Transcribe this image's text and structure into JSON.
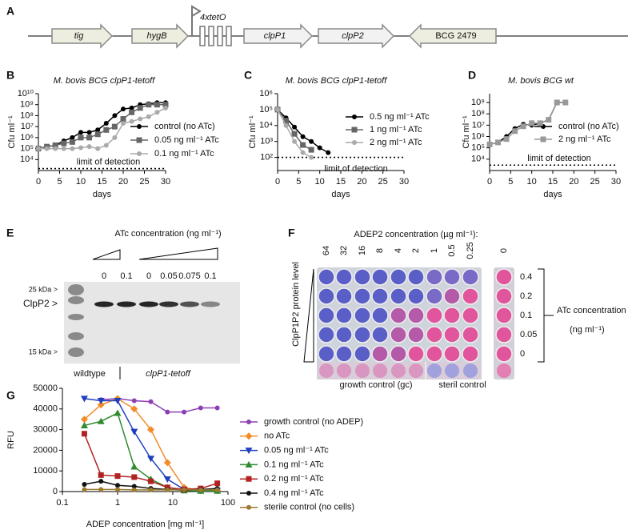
{
  "panel_labels": [
    "A",
    "B",
    "C",
    "D",
    "E",
    "F",
    "G"
  ],
  "diagram": {
    "genes": [
      "tig",
      "hygB",
      "clpP1",
      "clpP2",
      "BCG 2479"
    ],
    "operator": "4xtetO"
  },
  "chart_data": [
    {
      "type": "line",
      "title": "M. bovis BCG clpP1-tetoff",
      "xlabel": "days",
      "ylabel": "Cfu ml⁻¹",
      "ylog": true,
      "x": [
        0,
        2,
        4,
        6,
        8,
        10,
        12,
        14,
        16,
        18,
        20,
        22,
        24,
        26,
        28,
        30
      ],
      "series": [
        {
          "name": "control (no ATc)",
          "color": "#000000",
          "marker": "circle",
          "values": [
            100000,
            150000,
            200000,
            500000,
            1000000,
            3000000,
            3000000,
            5000000,
            20000000,
            100000000,
            400000000,
            500000000,
            1000000000,
            1200000000,
            1500000000,
            1500000000
          ]
        },
        {
          "name": "0.05 ng ml⁻¹ ATc",
          "color": "#666666",
          "marker": "square",
          "values": [
            100000,
            150000,
            200000,
            300000,
            400000,
            1000000,
            1000000,
            2000000,
            5000000,
            10000000,
            50000000,
            200000000,
            500000000,
            1000000000,
            1000000000,
            1000000000
          ]
        },
        {
          "name": "0.1 ng ml⁻¹ ATc",
          "color": "#aaaaaa",
          "marker": "circle",
          "values": [
            100000,
            100000,
            100000,
            100000,
            100000,
            120000,
            150000,
            100000,
            200000,
            1000000,
            20000000,
            30000000,
            50000000,
            80000000,
            200000000,
            500000000
          ]
        }
      ],
      "xlim": [
        0,
        30
      ],
      "xticks": [
        0,
        5,
        10,
        15,
        20,
        25,
        30
      ],
      "ylim": [
        1000,
        10000000000
      ],
      "yticks": [
        {
          "value": 10000,
          "label": "10⁴"
        },
        {
          "value": 100000,
          "label": "10⁵"
        },
        {
          "value": 1000000,
          "label": "10⁶"
        },
        {
          "value": 10000000,
          "label": "10⁷"
        },
        {
          "value": 100000000,
          "label": "10⁸"
        },
        {
          "value": 1000000000,
          "label": "10⁹"
        },
        {
          "value": 10000000000,
          "label": "10¹⁰"
        }
      ],
      "annotation": {
        "text": "limit of detection",
        "value": 1500
      }
    },
    {
      "type": "line",
      "title": "M. bovis BCG clpP1-tetoff",
      "xlabel": "days",
      "ylabel": "Cfu ml⁻¹",
      "ylog": true,
      "x": [
        0,
        2,
        4,
        6,
        8,
        10,
        12
      ],
      "series": [
        {
          "name": "0.5 ng ml⁻¹ ATc",
          "color": "#000000",
          "marker": "circle",
          "values": [
            100000,
            30000,
            8000,
            2000,
            1000,
            400,
            200
          ]
        },
        {
          "name": "1 ng ml⁻¹ ATc",
          "color": "#666666",
          "marker": "square",
          "values": [
            100000,
            20000,
            3000,
            600,
            300,
            null,
            null
          ]
        },
        {
          "name": "2 ng ml⁻¹ ATc",
          "color": "#aaaaaa",
          "marker": "circle",
          "values": [
            100000,
            10000,
            1000,
            200,
            100,
            null,
            null
          ]
        }
      ],
      "xlim": [
        0,
        30
      ],
      "xticks": [
        0,
        5,
        10,
        15,
        20,
        25,
        30
      ],
      "ylim": [
        15,
        1000000
      ],
      "yticks": [
        {
          "value": 100,
          "label": "10²"
        },
        {
          "value": 1000,
          "label": "10³"
        },
        {
          "value": 10000,
          "label": "10⁴"
        },
        {
          "value": 100000,
          "label": "10⁵"
        },
        {
          "value": 1000000,
          "label": "10⁶"
        }
      ],
      "annotation": {
        "text": "limit of detection",
        "value": 100
      }
    },
    {
      "type": "line",
      "title": "M. bovis BCG wt",
      "xlabel": "days",
      "ylabel": "Cfu ml⁻¹",
      "ylog": true,
      "x": [
        0,
        2,
        4,
        6,
        8,
        10,
        12,
        14,
        16,
        18
      ],
      "series": [
        {
          "name": "control (no ATc)",
          "color": "#000000",
          "marker": "circle",
          "values": [
            200000,
            300000,
            1000000,
            5000000,
            12000000,
            10000000,
            15000000,
            30000000,
            1000000000,
            1000000000
          ]
        },
        {
          "name": "2 ng ml⁻¹ ATc",
          "color": "#999999",
          "marker": "square",
          "values": [
            200000,
            300000,
            600000,
            3000000,
            8000000,
            15000000,
            15000000,
            30000000,
            1000000000,
            1000000000
          ]
        }
      ],
      "xlim": [
        0,
        30
      ],
      "xticks": [
        0,
        5,
        10,
        15,
        20,
        25,
        30
      ],
      "ylim": [
        1000,
        6000000000
      ],
      "yticks": [
        {
          "value": 10000,
          "label": "10⁴"
        },
        {
          "value": 100000,
          "label": "10⁵"
        },
        {
          "value": 1000000,
          "label": "10⁶"
        },
        {
          "value": 10000000,
          "label": "10⁷"
        },
        {
          "value": 100000000,
          "label": "10⁸"
        },
        {
          "value": 1000000000,
          "label": "10⁹"
        }
      ],
      "annotation": {
        "text": "limit of detection",
        "value": 3000
      }
    },
    {
      "type": "line",
      "xlabel": "ADEP concentration [mg ml⁻¹]",
      "ylabel": "RFU",
      "xlog": true,
      "x": [
        0.25,
        0.5,
        1,
        2,
        4,
        8,
        16,
        32,
        64
      ],
      "series": [
        {
          "name": "growth control (no ADEP)",
          "color": "#8e3fb5",
          "marker": "circle",
          "values": [
            null,
            44500,
            45000,
            44000,
            43500,
            38500,
            38500,
            40500,
            40500
          ]
        },
        {
          "name": "no ATc",
          "color": "#f28c28",
          "marker": "diamond",
          "values": [
            35000,
            42000,
            45000,
            40000,
            30000,
            14000,
            2000,
            500,
            500
          ]
        },
        {
          "name": "0.05 ng ml⁻¹ ATc",
          "color": "#1f3fbf",
          "marker": "tri-down",
          "values": [
            45000,
            44000,
            44000,
            29000,
            16000,
            6000,
            1000,
            500,
            500
          ]
        },
        {
          "name": "0.1 ng ml⁻¹ ATc",
          "color": "#2e8b2e",
          "marker": "tri-up",
          "values": [
            32000,
            34000,
            38000,
            12000,
            6000,
            2000,
            500,
            300,
            300
          ]
        },
        {
          "name": "0.2 ng ml⁻¹ ATc",
          "color": "#b22222",
          "marker": "square",
          "values": [
            28000,
            8000,
            7500,
            7000,
            5000,
            2000,
            1000,
            1500,
            4000
          ]
        },
        {
          "name": "0.4 ng ml⁻¹ ATc",
          "color": "#111111",
          "marker": "circle",
          "values": [
            3500,
            5000,
            3000,
            2500,
            1500,
            1000,
            700,
            1000,
            1500
          ]
        },
        {
          "name": "sterile control (no cells)",
          "color": "#9c7a2e",
          "marker": "circle",
          "values": [
            1000,
            1000,
            1000,
            800,
            800,
            800,
            800,
            800,
            800
          ]
        }
      ],
      "xlim": [
        0.1,
        100
      ],
      "xticks": [
        0.1,
        1,
        10,
        100
      ],
      "ylim": [
        0,
        50000
      ],
      "yticks": [
        0,
        10000,
        20000,
        30000,
        40000,
        50000
      ]
    }
  ],
  "gel": {
    "title": "ATc concentration (ng ml⁻¹)",
    "lanes": [
      "0",
      "0.1",
      "0",
      "0.05",
      "0.075",
      "0.1"
    ],
    "markers": [
      "25 kDa >",
      "ClpP2 >",
      "15 kDa >"
    ],
    "groups": [
      "wildtype",
      "clpP1-tetoff"
    ]
  },
  "plate": {
    "title": "ADEP2 concentration (µg ml⁻¹):",
    "columns": [
      "64",
      "32",
      "16",
      "8",
      "4",
      "2",
      "1",
      "0.5",
      "0.25",
      "0"
    ],
    "rows": [
      "0.4",
      "0.2",
      "0.1",
      "0.05",
      "0"
    ],
    "side_label": "ClpP1P2 protein level",
    "row_title": [
      "ATc concentration",
      "(ng ml⁻¹)"
    ],
    "footer": [
      "growth control (gc)",
      "steril control"
    ]
  }
}
